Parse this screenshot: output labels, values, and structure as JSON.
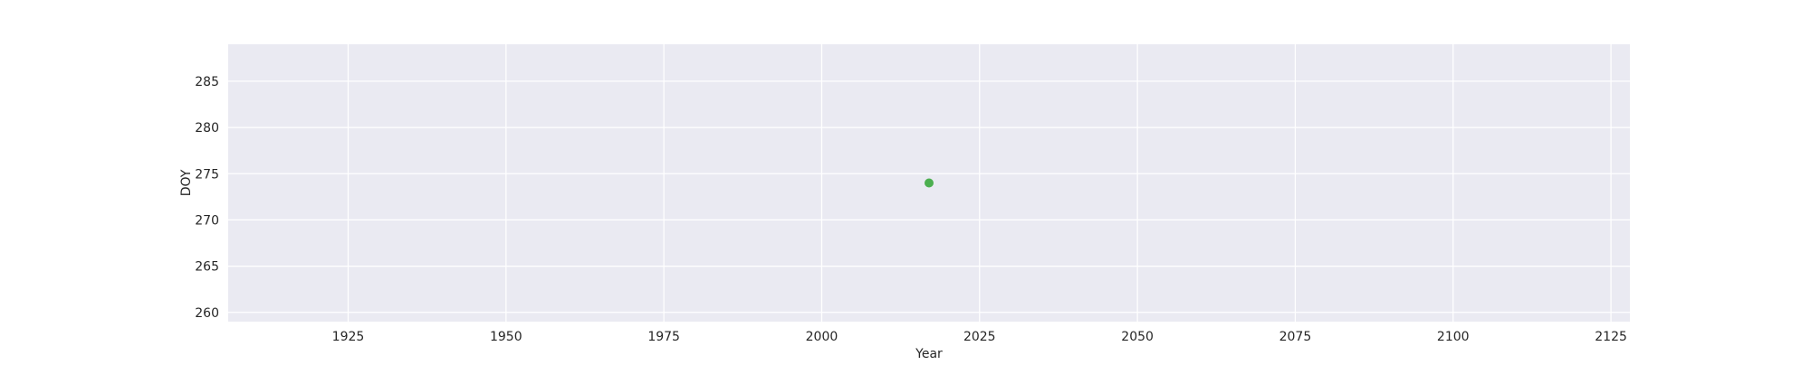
{
  "chart_data": {
    "type": "scatter",
    "title": "",
    "xlabel": "Year",
    "ylabel": "DOY",
    "xlim": [
      1906,
      2128
    ],
    "ylim": [
      259,
      289
    ],
    "xticks": [
      1925,
      1950,
      1975,
      2000,
      2025,
      2050,
      2075,
      2100,
      2125
    ],
    "yticks": [
      260,
      265,
      270,
      275,
      280,
      285
    ],
    "grid": true,
    "series": [
      {
        "points": [
          {
            "x": 2017,
            "y": 274
          }
        ]
      }
    ]
  },
  "colors": {
    "plot_background": "#eaeaf2",
    "grid": "#ffffff",
    "text": "#262626",
    "point": "#4caf50"
  }
}
